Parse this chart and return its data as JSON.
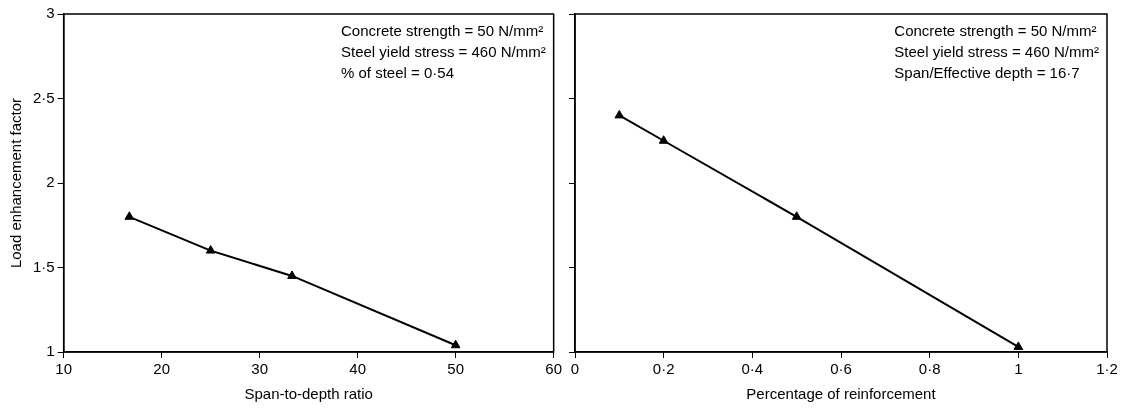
{
  "chart_data": [
    {
      "type": "line",
      "xlabel": "Span-to-depth ratio",
      "ylabel": "Load enhancement factor",
      "x": [
        16.7,
        25,
        33.3,
        50
      ],
      "series": [
        {
          "color": "#000000",
          "values": [
            1.8,
            1.6,
            1.45,
            1.04
          ]
        }
      ],
      "xlim": [
        10,
        60
      ],
      "xticks": [
        10,
        20,
        30,
        40,
        50,
        60
      ],
      "ylim": [
        1,
        3
      ],
      "yticks": [
        1,
        {
          "value": 1.5,
          "label": "1·5"
        },
        2,
        {
          "value": 2.5,
          "label": "2·5"
        },
        3
      ],
      "annotations": [
        "Concrete strength = 50 N/mm²",
        "Steel yield stress = 460 N/mm²",
        "% of steel = 0·54"
      ],
      "marker": "triangle",
      "line_style": "solid",
      "grid": false,
      "legend": false
    },
    {
      "type": "line",
      "xlabel": "Percentage of reinforcement",
      "x": [
        0.1,
        0.2,
        0.5,
        1
      ],
      "series": [
        {
          "color": "#000000",
          "values": [
            2.4,
            2.25,
            1.8,
            1.03
          ]
        }
      ],
      "xlim": [
        0,
        1.2
      ],
      "xticks": [
        0,
        {
          "value": 0.2,
          "label": "0·2"
        },
        {
          "value": 0.4,
          "label": "0·4"
        },
        {
          "value": 0.6,
          "label": "0·6"
        },
        {
          "value": 0.8,
          "label": "0·8"
        },
        1,
        {
          "value": 1.2,
          "label": "1·2"
        }
      ],
      "ylim": [
        1,
        3
      ],
      "yticks": [
        1,
        1.5,
        2,
        2.5,
        3
      ],
      "tick_labels": "x",
      "annotations": [
        "Concrete strength = 50 N/mm²",
        "Steel yield stress = 460 N/mm²",
        "Span/Effective depth = 16·7"
      ],
      "marker": "triangle",
      "line_style": "solid",
      "grid": false,
      "legend": false
    }
  ]
}
